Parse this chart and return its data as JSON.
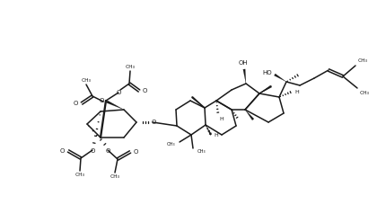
{
  "bg_color": "#ffffff",
  "line_color": "#1a1a1a",
  "lw": 1.1,
  "fw": 4.31,
  "fh": 2.47,
  "dpi": 100
}
